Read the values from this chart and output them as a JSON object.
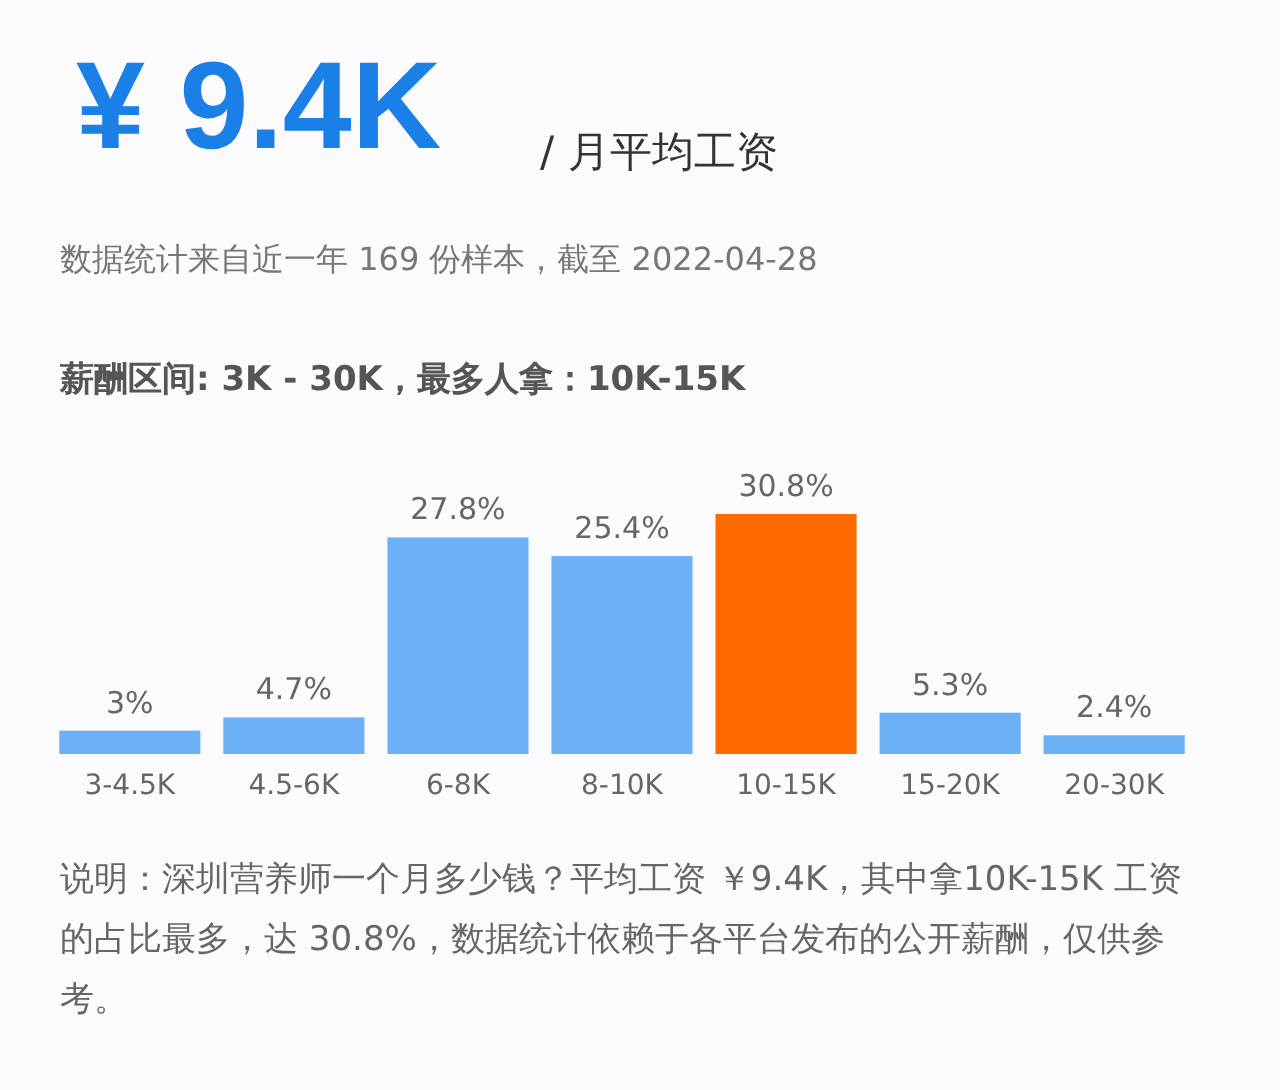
{
  "chart_data": {
    "type": "bar",
    "title": "¥ 9.4K",
    "subtitle": "/ 月平均工资",
    "annotations": [
      "数据统计来自近一年 169 份样本，截至 2022-04-28",
      "薪酬区间: 3K - 30K，最多人拿：10K-15K",
      "说明：深圳营养师一个月多少钱？平均工资 ￥9.4K，其中拿10K-15K 工资的占比最多，达 30.8%，数据统计依赖于各平台发布的公开薪酬，仅供参考。"
    ],
    "categories": [
      "3-4.5K",
      "4.5-6K",
      "6-8K",
      "8-10K",
      "10-15K",
      "15-20K",
      "20-30K"
    ],
    "values": [
      3,
      4.7,
      27.8,
      25.4,
      30.8,
      5.3,
      2.4
    ],
    "colors": [
      "#6cb0f7",
      "#6cb0f7",
      "#6cb0f7",
      "#6cb0f7",
      "#ff6a00",
      "#6cb0f7",
      "#6cb0f7"
    ],
    "value_labels": [
      "3%",
      "4.7%",
      "27.8%",
      "25.4%",
      "30.8%",
      "5.3%",
      "2.4%"
    ]
  }
}
